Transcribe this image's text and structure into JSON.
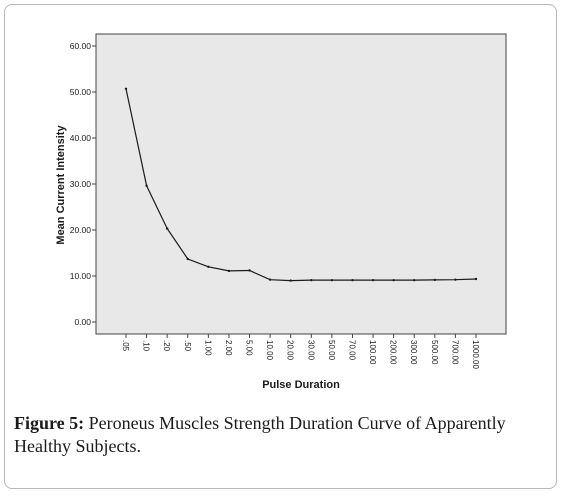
{
  "chart_data": {
    "type": "line",
    "title": "",
    "xlabel": "Pulse Duration",
    "ylabel": "Mean Current Intensity",
    "categories": [
      ".05",
      ".10",
      ".20",
      ".50",
      "1.00",
      "2.00",
      "5.00",
      "10.00",
      "20.00",
      "30.00",
      "50.00",
      "70.00",
      "100.00",
      "200.00",
      "300.00",
      "500.00",
      "700.00",
      "1000.00"
    ],
    "series": [
      {
        "values": [
          50.7,
          29.6,
          20.3,
          13.7,
          12.0,
          11.1,
          11.2,
          9.2,
          9.0,
          9.1,
          9.1,
          9.1,
          9.1,
          9.1,
          9.1,
          9.15,
          9.2,
          9.35
        ]
      }
    ],
    "ylim": [
      0,
      60
    ],
    "yticks": [
      "0.00",
      "10.00",
      "20.00",
      "30.00",
      "40.00",
      "50.00",
      "60.00"
    ],
    "plot_background": "#e8e8e8",
    "line_color": "#1a1a1a",
    "grid": false
  },
  "caption": {
    "label": "Figure 5:",
    "text": " Peroneus Muscles Strength Duration Curve of Apparently Healthy Subjects."
  }
}
